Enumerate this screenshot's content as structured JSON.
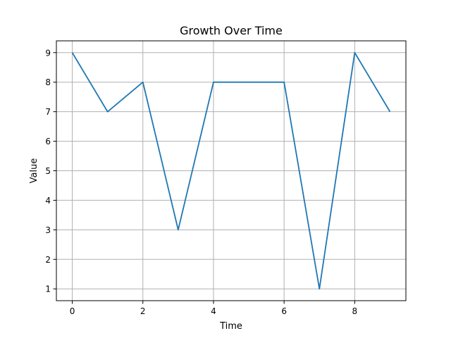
{
  "chart_data": {
    "type": "line",
    "title": "Growth Over Time",
    "xlabel": "Time",
    "ylabel": "Value",
    "x": [
      0,
      1,
      2,
      3,
      4,
      5,
      6,
      7,
      8,
      9
    ],
    "series": [
      {
        "values": [
          9,
          7,
          8,
          3,
          8,
          8,
          8,
          1,
          9,
          7
        ]
      }
    ],
    "xlim": [
      -0.45,
      9.45
    ],
    "ylim": [
      0.6,
      9.4
    ],
    "xticks": [
      0,
      2,
      4,
      6,
      8
    ],
    "yticks": [
      1,
      2,
      3,
      4,
      5,
      6,
      7,
      8,
      9
    ],
    "grid": true,
    "line_color": "#1f77b4",
    "grid_color": "#b0b0b0"
  }
}
